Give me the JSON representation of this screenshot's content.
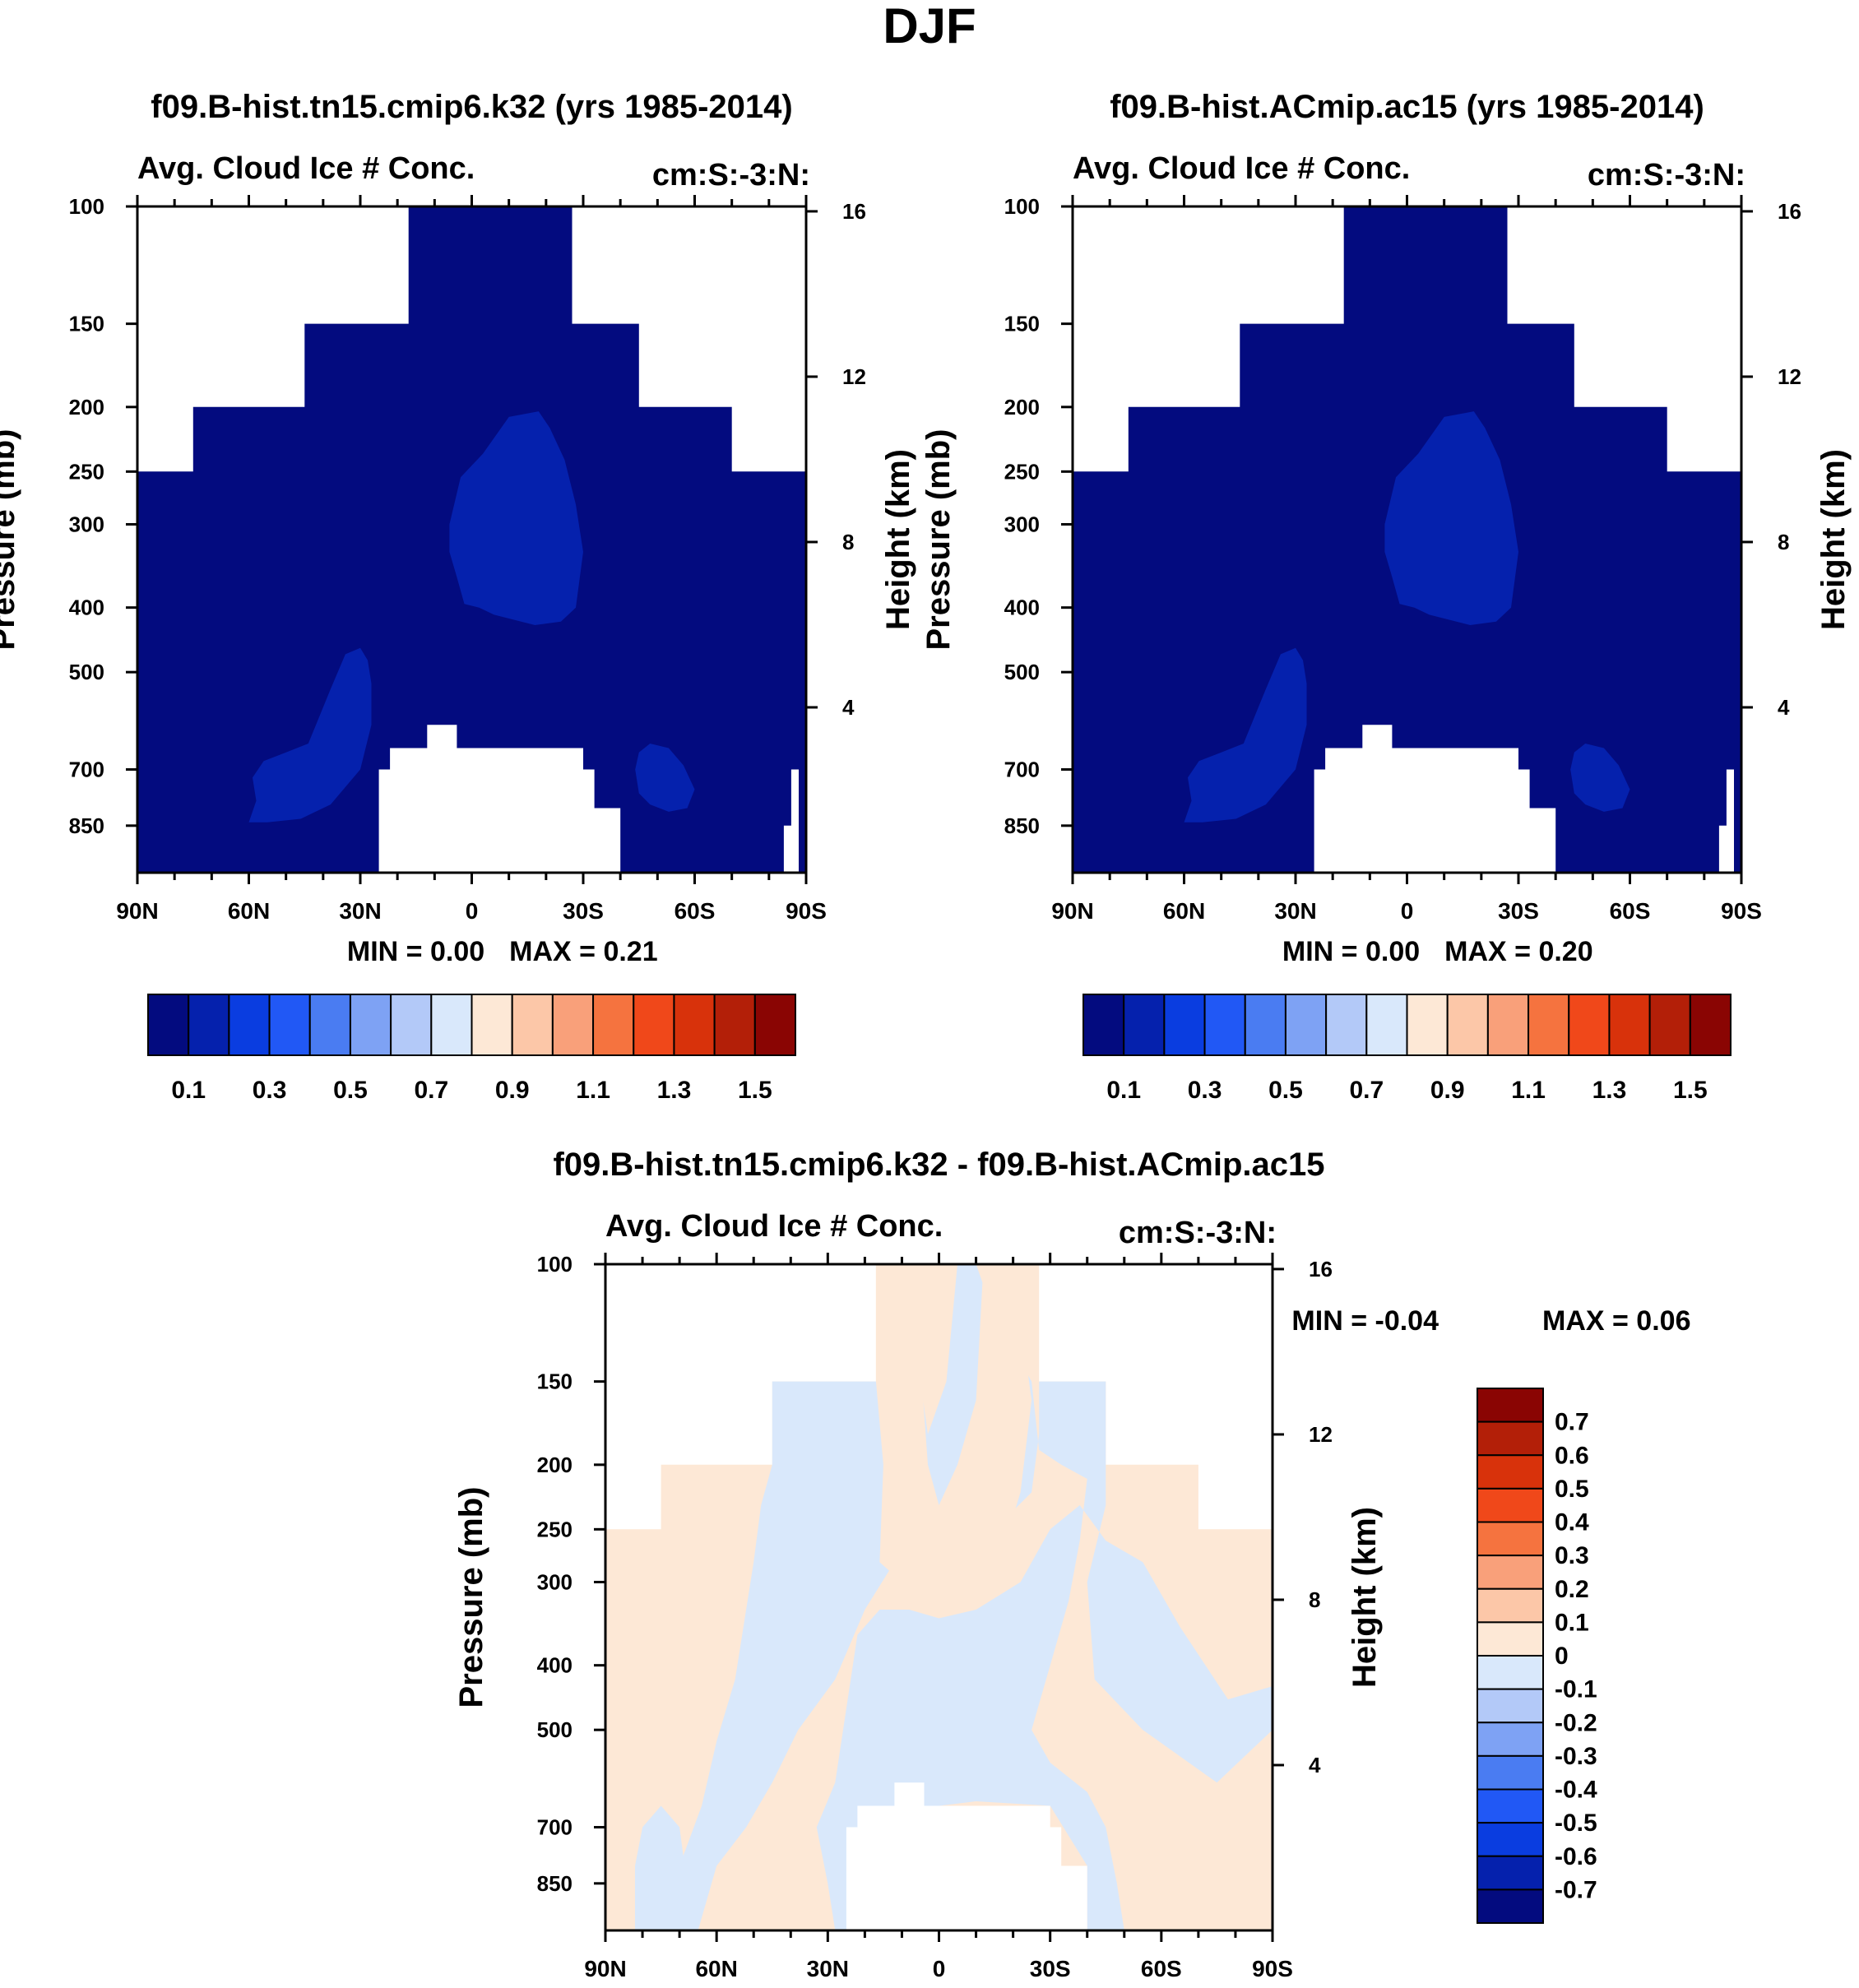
{
  "suptitle": "DJF",
  "chart_data": [
    {
      "id": "top-left",
      "type": "heatmap",
      "title": "f09.B-hist.tn15.cmip6.k32 (yrs 1985-2014)",
      "left_label": "Avg. Cloud Ice # Conc.",
      "right_label": "cm:S:-3:N:",
      "ylabel": "Pressure (mb)",
      "ylabel_right": "Height (km)",
      "x_ticklabels": [
        "90N",
        "60N",
        "30N",
        "0",
        "30S",
        "60S",
        "90S"
      ],
      "x_values": [
        -90,
        -60,
        -30,
        0,
        30,
        60,
        90
      ],
      "y_ticklabels": [
        "100",
        "150",
        "200",
        "250",
        "300",
        "400",
        "500",
        "700",
        "850"
      ],
      "y_values": [
        100,
        150,
        200,
        250,
        300,
        400,
        500,
        700,
        850
      ],
      "ylim": [
        100,
        1000
      ],
      "y_right_ticklabels": [
        "16",
        "12",
        "8",
        "4"
      ],
      "y_right_values": [
        16,
        12,
        8,
        4
      ],
      "min_label": "MIN =   0.00",
      "max_label": "MAX =   0.21",
      "fields": {
        "base": "<0.1 over data region",
        "cells": [
          {
            "region": "tropics 8N-35S, 200-420mb",
            "value_range": "0.1-0.2"
          },
          {
            "region": "NH midlatitude 25N-60N, 450-850mb",
            "value_range": "0.1-0.2"
          },
          {
            "region": "SH 42S-58S, 630-830mb",
            "value_range": "0.1-0.2"
          }
        ]
      }
    },
    {
      "id": "top-right",
      "type": "heatmap",
      "title": "f09.B-hist.ACmip.ac15 (yrs 1985-2014)",
      "left_label": "Avg. Cloud Ice # Conc.",
      "right_label": "cm:S:-3:N:",
      "ylabel": "Pressure (mb)",
      "ylabel_right": "Height (km)",
      "x_ticklabels": [
        "90N",
        "60N",
        "30N",
        "0",
        "30S",
        "60S",
        "90S"
      ],
      "x_values": [
        -90,
        -60,
        -30,
        0,
        30,
        60,
        90
      ],
      "y_ticklabels": [
        "100",
        "150",
        "200",
        "250",
        "300",
        "400",
        "500",
        "700",
        "850"
      ],
      "y_values": [
        100,
        150,
        200,
        250,
        300,
        400,
        500,
        700,
        850
      ],
      "ylim": [
        100,
        1000
      ],
      "y_right_ticklabels": [
        "16",
        "12",
        "8",
        "4"
      ],
      "y_right_values": [
        16,
        12,
        8,
        4
      ],
      "min_label": "MIN =   0.00",
      "max_label": "MAX =   0.20",
      "fields": {
        "base": "<0.1 over data region",
        "cells": [
          {
            "region": "tropics 8N-35S, 200-420mb",
            "value_range": "0.1-0.2"
          },
          {
            "region": "NH midlatitude 25N-60N, 450-850mb",
            "value_range": "0.1-0.2"
          },
          {
            "region": "SH 42S-58S, 630-830mb",
            "value_range": "0.1-0.2"
          }
        ]
      }
    },
    {
      "id": "bottom-diff",
      "type": "heatmap",
      "title": "f09.B-hist.tn15.cmip6.k32 - f09.B-hist.ACmip.ac15",
      "left_label": "Avg. Cloud Ice # Conc.",
      "right_label": "cm:S:-3:N:",
      "ylabel": "Pressure (mb)",
      "ylabel_right": "Height (km)",
      "x_ticklabels": [
        "90N",
        "60N",
        "30N",
        "0",
        "30S",
        "60S",
        "90S"
      ],
      "x_values": [
        -90,
        -60,
        -30,
        0,
        30,
        60,
        90
      ],
      "y_ticklabels": [
        "100",
        "150",
        "200",
        "250",
        "300",
        "400",
        "500",
        "700",
        "850"
      ],
      "y_values": [
        100,
        150,
        200,
        250,
        300,
        400,
        500,
        700,
        850
      ],
      "ylim": [
        100,
        1000
      ],
      "y_right_ticklabels": [
        "16",
        "12",
        "8",
        "4"
      ],
      "y_right_values": [
        16,
        12,
        8,
        4
      ],
      "min_label": "MIN =  -0.04",
      "max_label": "MAX =   0.06",
      "fields": {
        "base": "mixed 0 to 0.1 (positive) and -0.1 to 0 (negative) bands"
      }
    }
  ],
  "colorbars": {
    "absolute": {
      "orientation": "horizontal",
      "labels": [
        "0.1",
        "0.3",
        "0.5",
        "0.7",
        "0.9",
        "1.1",
        "1.3",
        "1.5"
      ],
      "colors": [
        "#030b7f",
        "#0521ad",
        "#0a3de0",
        "#2158f5",
        "#4a7cf2",
        "#7ea2f4",
        "#b3c9f8",
        "#d9e8fb",
        "#fde8d6",
        "#fcc7a8",
        "#f9a07a",
        "#f5733f",
        "#f0481a",
        "#d8320b",
        "#b31f08",
        "#8a0503"
      ]
    },
    "difference": {
      "orientation": "vertical",
      "labels": [
        "0.7",
        "0.6",
        "0.5",
        "0.4",
        "0.3",
        "0.2",
        "0.1",
        "0",
        "-0.1",
        "-0.2",
        "-0.3",
        "-0.4",
        "-0.5",
        "-0.6",
        "-0.7"
      ],
      "colors": [
        "#8a0503",
        "#b31f08",
        "#d8320b",
        "#f0481a",
        "#f5733f",
        "#f9a07a",
        "#fcc7a8",
        "#fde8d6",
        "#d9e8fb",
        "#b3c9f8",
        "#7ea2f4",
        "#4a7cf2",
        "#2158f5",
        "#0a3de0",
        "#0521ad",
        "#030b7f"
      ]
    }
  }
}
